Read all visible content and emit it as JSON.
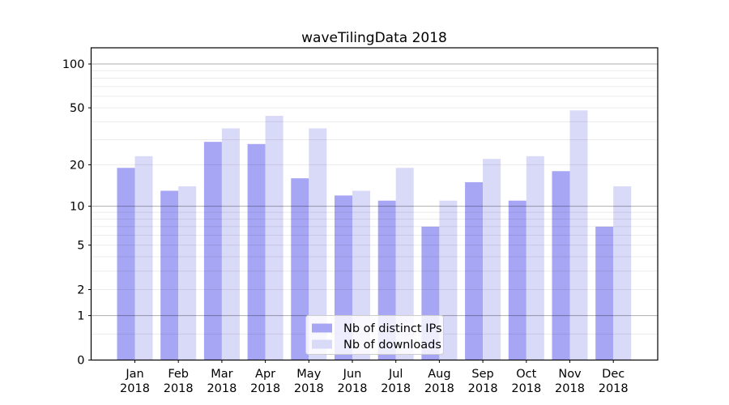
{
  "chart_data": {
    "type": "bar",
    "title": "waveTilingData 2018",
    "categories": [
      "Jan 2018",
      "Feb 2018",
      "Mar 2018",
      "Apr 2018",
      "May 2018",
      "Jun 2018",
      "Jul 2018",
      "Aug 2018",
      "Sep 2018",
      "Oct 2018",
      "Nov 2018",
      "Dec 2018"
    ],
    "series": [
      {
        "name": "Nb of distinct IPs",
        "color": "#a6a6f4",
        "values": [
          19,
          13,
          29,
          28,
          16,
          12,
          11,
          7,
          15,
          11,
          18,
          7
        ]
      },
      {
        "name": "Nb of downloads",
        "color": "#d9d9f8",
        "values": [
          23,
          14,
          36,
          44,
          36,
          13,
          19,
          11,
          22,
          23,
          48,
          14
        ]
      }
    ],
    "xlabel": "",
    "ylabel": "",
    "yscale": "log1p",
    "ylim": [
      0,
      129
    ],
    "ytick_labels": [
      0,
      1,
      2,
      5,
      10,
      20,
      50,
      100
    ],
    "major_grid_values": [
      1,
      10,
      100
    ],
    "minor_grid_values": [
      0.5,
      2,
      3,
      4,
      5,
      6,
      7,
      8,
      9,
      20,
      30,
      40,
      50,
      60,
      70,
      80,
      90
    ],
    "grid": true,
    "legend_position": "lower center inside"
  }
}
